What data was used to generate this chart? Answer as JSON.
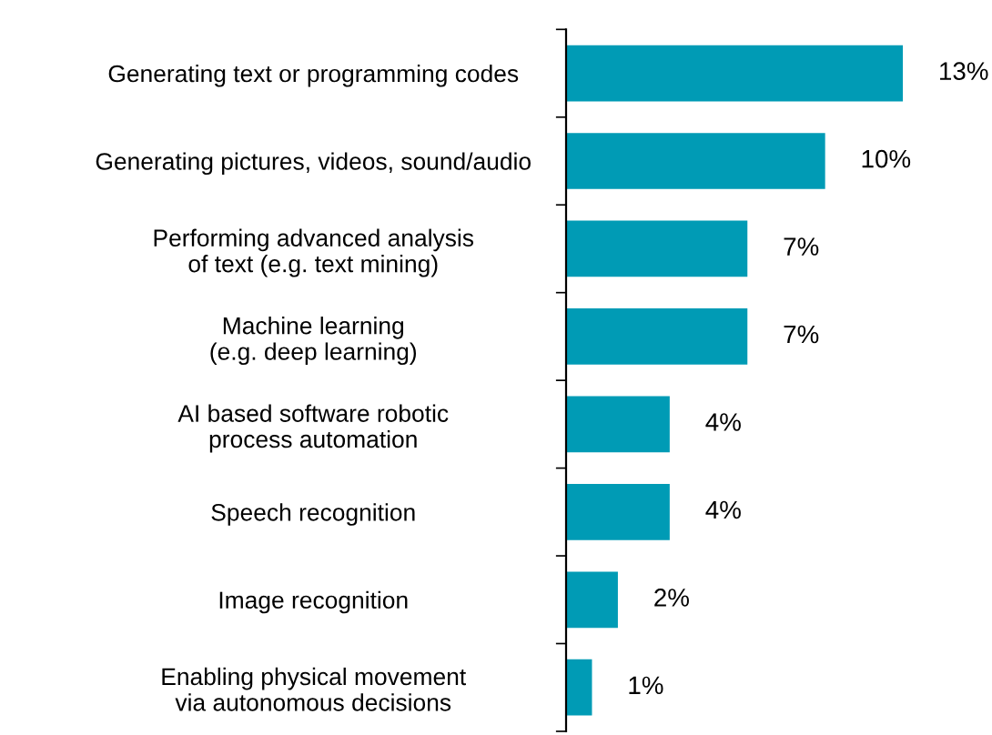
{
  "chart_data": {
    "type": "bar",
    "orientation": "horizontal",
    "categories": [
      "Generating text or programming codes",
      "Generating pictures, videos, sound/audio",
      "Performing advanced analysis\nof text (e.g. text mining)",
      "Machine learning\n(e.g. deep learning)",
      "AI based software robotic\nprocess automation",
      "Speech recognition",
      "Image recognition",
      "Enabling physical movement\nvia autonomous decisions"
    ],
    "values": [
      13,
      10,
      7,
      7,
      4,
      4,
      2,
      1
    ],
    "value_labels": [
      "13%",
      "10%",
      "7%",
      "7%",
      "4%",
      "4%",
      "2%",
      "1%"
    ],
    "color": "#009bb5",
    "grid": false,
    "legend": false
  }
}
